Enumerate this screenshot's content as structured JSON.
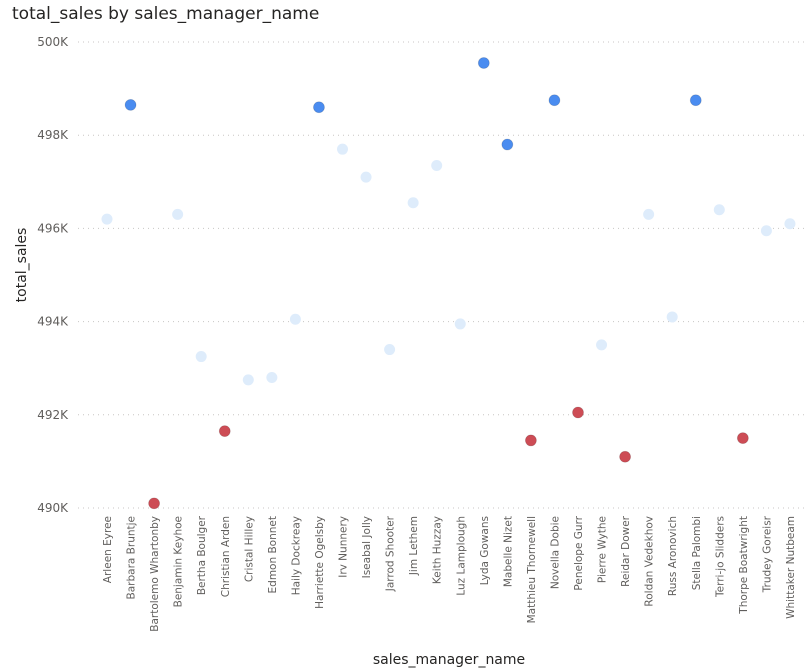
{
  "chart_data": {
    "type": "scatter",
    "title": "total_sales by sales_manager_name",
    "xlabel": "sales_manager_name",
    "ylabel": "total_sales",
    "ylim": [
      490000,
      500000
    ],
    "yticks": [
      490000,
      492000,
      494000,
      496000,
      498000,
      500000
    ],
    "ytick_labels": [
      "490K",
      "492K",
      "494K",
      "496K",
      "498K",
      "500K"
    ],
    "grid": true,
    "categories": [
      "Arleen Eyree",
      "Barbara Bruntje",
      "Bartolemo Whartonby",
      "Benjamin Keyhoe",
      "Bertha Boulger",
      "Christian Arden",
      "Cristal Hilley",
      "Edmon Bonnet",
      "Haily Dockreay",
      "Harriette Ogelsby",
      "Irv Nunnery",
      "Iseabal Jolly",
      "Jarrod Shooter",
      "Jim Lethem",
      "Keith Huzzay",
      "Luz Lamplough",
      "Lyda Gowans",
      "Mabelle Nizet",
      "Matthieu Thornewell",
      "Novella Dobie",
      "Penelope Gurr",
      "Pierre Wythe",
      "Reidar Dower",
      "Roldan Vedekhov",
      "Russ Aronovich",
      "Stella Palombi",
      "Terri-jo Slidders",
      "Thorpe Boatwright",
      "Trudey Goreisr",
      "Whittaker Nutbeam"
    ],
    "values": [
      496200,
      498650,
      490100,
      496300,
      493250,
      491650,
      492750,
      492800,
      494050,
      498600,
      497700,
      497100,
      493400,
      496550,
      497350,
      493950,
      499550,
      497800,
      491450,
      498750,
      492050,
      493500,
      491100,
      496300,
      494100,
      498750,
      496400,
      491500,
      495950,
      496100
    ],
    "point_groups": [
      "mid",
      "high",
      "low",
      "mid",
      "mid",
      "low",
      "mid",
      "mid",
      "mid",
      "high",
      "mid",
      "mid",
      "mid",
      "mid",
      "mid",
      "mid",
      "high",
      "high",
      "low",
      "high",
      "low",
      "mid",
      "low",
      "mid",
      "mid",
      "high",
      "mid",
      "low",
      "mid",
      "mid"
    ],
    "colors": {
      "high": "#4A8CF0",
      "mid": "#DEECFB",
      "low": "#CD4C55"
    }
  }
}
